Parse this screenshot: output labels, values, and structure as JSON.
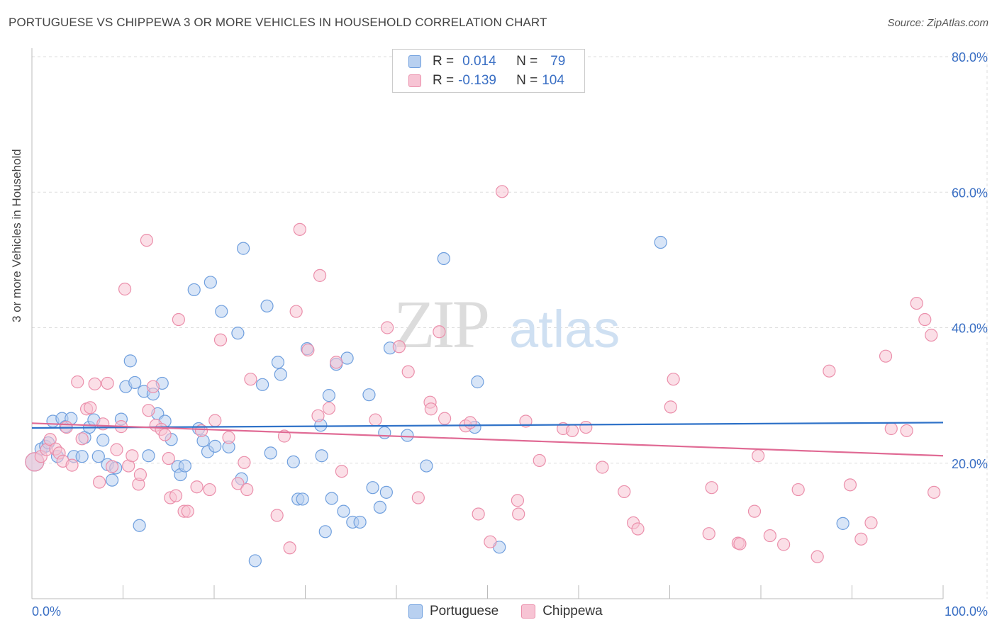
{
  "header": {
    "title": "PORTUGUESE VS CHIPPEWA 3 OR MORE VEHICLES IN HOUSEHOLD CORRELATION CHART",
    "source": "Source: ZipAtlas.com"
  },
  "legend": {
    "rows": [
      {
        "r_label": "R =",
        "r_value": "0.014",
        "n_label": "N =",
        "n_value": "79"
      },
      {
        "r_label": "R =",
        "r_value": "-0.139",
        "n_label": "N =",
        "n_value": "104"
      }
    ]
  },
  "colors": {
    "portuguese_fill": "#b8d0f0",
    "portuguese_stroke": "#6f9fde",
    "portuguese_line": "#2f72c8",
    "chippewa_fill": "#f7c4d4",
    "chippewa_stroke": "#eb8fab",
    "chippewa_line": "#e06a94",
    "axis_label": "#3a6fc4",
    "grid": "#dddddd"
  },
  "watermark": {
    "zip": "ZIP",
    "atlas": "atlas"
  },
  "chart_data": {
    "type": "scatter",
    "title": "PORTUGUESE VS CHIPPEWA 3 OR MORE VEHICLES IN HOUSEHOLD CORRELATION CHART",
    "xlabel": "",
    "ylabel": "3 or more Vehicles in Household",
    "xlim": [
      0,
      100
    ],
    "ylim": [
      0,
      80
    ],
    "x_tick_labels": [
      "0.0%",
      "100.0%"
    ],
    "y_tick_labels": [
      "20.0%",
      "40.0%",
      "60.0%",
      "80.0%"
    ],
    "y_ticks": [
      20,
      40,
      60,
      80
    ],
    "grid": true,
    "legend_position": "top-center",
    "series": [
      {
        "name": "Portuguese",
        "r": 0.014,
        "n": 79,
        "trend": {
          "x": [
            0,
            100
          ],
          "y": [
            25.2,
            26.0
          ]
        },
        "points": [
          [
            0.3,
            20.2
          ],
          [
            1.0,
            22.1
          ],
          [
            1.5,
            22.5
          ],
          [
            1.8,
            23.0
          ],
          [
            2.3,
            26.2
          ],
          [
            2.8,
            21.0
          ],
          [
            3.3,
            26.6
          ],
          [
            3.7,
            25.4
          ],
          [
            4.3,
            26.6
          ],
          [
            4.6,
            21.0
          ],
          [
            5.5,
            21.0
          ],
          [
            5.8,
            23.8
          ],
          [
            6.3,
            25.3
          ],
          [
            6.8,
            26.4
          ],
          [
            7.3,
            21.0
          ],
          [
            7.8,
            23.4
          ],
          [
            8.3,
            19.8
          ],
          [
            8.8,
            17.5
          ],
          [
            9.2,
            19.3
          ],
          [
            9.8,
            26.5
          ],
          [
            10.3,
            31.3
          ],
          [
            10.8,
            35.1
          ],
          [
            11.3,
            31.9
          ],
          [
            11.8,
            10.8
          ],
          [
            12.3,
            30.6
          ],
          [
            12.8,
            21.1
          ],
          [
            13.3,
            30.2
          ],
          [
            13.8,
            27.3
          ],
          [
            14.3,
            31.8
          ],
          [
            14.6,
            26.2
          ],
          [
            15.3,
            23.5
          ],
          [
            16.0,
            19.5
          ],
          [
            16.3,
            18.3
          ],
          [
            16.8,
            19.6
          ],
          [
            17.8,
            45.6
          ],
          [
            18.3,
            25.1
          ],
          [
            18.8,
            23.3
          ],
          [
            19.3,
            21.7
          ],
          [
            19.6,
            46.7
          ],
          [
            20.1,
            22.5
          ],
          [
            20.8,
            42.4
          ],
          [
            21.6,
            22.4
          ],
          [
            22.6,
            39.2
          ],
          [
            23.0,
            17.7
          ],
          [
            23.2,
            51.7
          ],
          [
            24.5,
            5.6
          ],
          [
            25.3,
            31.6
          ],
          [
            25.8,
            43.2
          ],
          [
            26.2,
            21.5
          ],
          [
            27.0,
            34.9
          ],
          [
            27.3,
            33.1
          ],
          [
            28.7,
            20.2
          ],
          [
            29.2,
            14.7
          ],
          [
            29.7,
            14.7
          ],
          [
            30.2,
            36.9
          ],
          [
            31.7,
            25.6
          ],
          [
            31.8,
            21.1
          ],
          [
            32.2,
            9.9
          ],
          [
            32.6,
            30.0
          ],
          [
            32.9,
            14.8
          ],
          [
            33.4,
            34.6
          ],
          [
            34.2,
            12.9
          ],
          [
            34.6,
            35.5
          ],
          [
            35.2,
            11.3
          ],
          [
            36.0,
            11.3
          ],
          [
            37.0,
            30.1
          ],
          [
            37.4,
            16.4
          ],
          [
            38.2,
            13.5
          ],
          [
            38.7,
            24.5
          ],
          [
            38.9,
            15.7
          ],
          [
            39.3,
            37.0
          ],
          [
            41.2,
            24.1
          ],
          [
            43.3,
            19.6
          ],
          [
            45.2,
            50.2
          ],
          [
            48.6,
            25.3
          ],
          [
            48.9,
            32.0
          ],
          [
            51.3,
            7.6
          ],
          [
            69.0,
            52.6
          ],
          [
            89.0,
            11.1
          ]
        ]
      },
      {
        "name": "Chippewa",
        "r": -0.139,
        "n": 104,
        "trend": {
          "x": [
            0,
            100
          ],
          "y": [
            25.9,
            21.1
          ]
        },
        "points": [
          [
            0.3,
            20.2
          ],
          [
            1.0,
            21.0
          ],
          [
            1.6,
            22.0
          ],
          [
            2.0,
            23.5
          ],
          [
            2.6,
            22.1
          ],
          [
            3.0,
            21.5
          ],
          [
            3.4,
            20.3
          ],
          [
            3.8,
            25.3
          ],
          [
            4.4,
            19.7
          ],
          [
            5.0,
            32.0
          ],
          [
            5.5,
            23.6
          ],
          [
            6.0,
            28.0
          ],
          [
            6.4,
            28.2
          ],
          [
            6.9,
            31.7
          ],
          [
            7.4,
            17.2
          ],
          [
            7.8,
            25.8
          ],
          [
            8.3,
            31.8
          ],
          [
            8.8,
            19.5
          ],
          [
            9.3,
            22.0
          ],
          [
            9.8,
            25.4
          ],
          [
            10.2,
            45.7
          ],
          [
            10.6,
            19.6
          ],
          [
            11.0,
            21.1
          ],
          [
            11.7,
            16.9
          ],
          [
            11.9,
            18.3
          ],
          [
            12.6,
            52.9
          ],
          [
            12.8,
            27.8
          ],
          [
            13.3,
            31.3
          ],
          [
            13.6,
            25.6
          ],
          [
            14.2,
            25.0
          ],
          [
            14.6,
            24.2
          ],
          [
            15.0,
            20.7
          ],
          [
            15.2,
            14.9
          ],
          [
            15.8,
            15.2
          ],
          [
            16.1,
            41.2
          ],
          [
            16.7,
            12.9
          ],
          [
            17.1,
            12.9
          ],
          [
            18.1,
            16.5
          ],
          [
            18.6,
            24.8
          ],
          [
            19.5,
            16.1
          ],
          [
            20.1,
            26.3
          ],
          [
            20.7,
            38.2
          ],
          [
            21.6,
            23.8
          ],
          [
            22.6,
            17.0
          ],
          [
            23.3,
            20.1
          ],
          [
            23.6,
            16.1
          ],
          [
            24.0,
            32.4
          ],
          [
            26.9,
            12.3
          ],
          [
            27.7,
            24.0
          ],
          [
            28.3,
            7.5
          ],
          [
            29.0,
            42.4
          ],
          [
            29.4,
            54.5
          ],
          [
            30.3,
            36.7
          ],
          [
            31.4,
            27.0
          ],
          [
            31.6,
            47.7
          ],
          [
            32.6,
            28.1
          ],
          [
            33.4,
            34.9
          ],
          [
            34.0,
            18.8
          ],
          [
            37.7,
            26.4
          ],
          [
            39.0,
            40.0
          ],
          [
            40.3,
            37.2
          ],
          [
            41.3,
            33.5
          ],
          [
            42.4,
            14.9
          ],
          [
            43.7,
            29.0
          ],
          [
            43.8,
            28.0
          ],
          [
            44.7,
            39.4
          ],
          [
            45.3,
            26.6
          ],
          [
            47.6,
            25.5
          ],
          [
            48.1,
            26.0
          ],
          [
            49.0,
            12.5
          ],
          [
            50.3,
            8.4
          ],
          [
            51.6,
            60.1
          ],
          [
            53.3,
            14.5
          ],
          [
            53.4,
            12.5
          ],
          [
            54.2,
            26.2
          ],
          [
            55.7,
            20.4
          ],
          [
            58.3,
            25.1
          ],
          [
            59.3,
            24.8
          ],
          [
            60.8,
            25.3
          ],
          [
            62.6,
            19.4
          ],
          [
            65.0,
            15.8
          ],
          [
            66.0,
            11.2
          ],
          [
            66.5,
            10.3
          ],
          [
            70.1,
            28.3
          ],
          [
            70.4,
            32.4
          ],
          [
            74.3,
            9.6
          ],
          [
            74.6,
            16.4
          ],
          [
            77.5,
            8.2
          ],
          [
            77.7,
            8.1
          ],
          [
            79.3,
            12.9
          ],
          [
            79.7,
            21.1
          ],
          [
            81.0,
            9.3
          ],
          [
            82.5,
            8.0
          ],
          [
            84.1,
            16.1
          ],
          [
            86.2,
            6.2
          ],
          [
            87.5,
            33.6
          ],
          [
            89.8,
            16.8
          ],
          [
            91.0,
            8.8
          ],
          [
            92.1,
            11.2
          ],
          [
            93.7,
            35.8
          ],
          [
            94.3,
            25.1
          ],
          [
            96.0,
            24.8
          ],
          [
            97.1,
            43.6
          ],
          [
            98.0,
            41.2
          ],
          [
            98.7,
            38.9
          ],
          [
            99.0,
            15.7
          ]
        ]
      }
    ]
  },
  "bottom_legend": {
    "items": [
      {
        "label": "Portuguese"
      },
      {
        "label": "Chippewa"
      }
    ]
  }
}
